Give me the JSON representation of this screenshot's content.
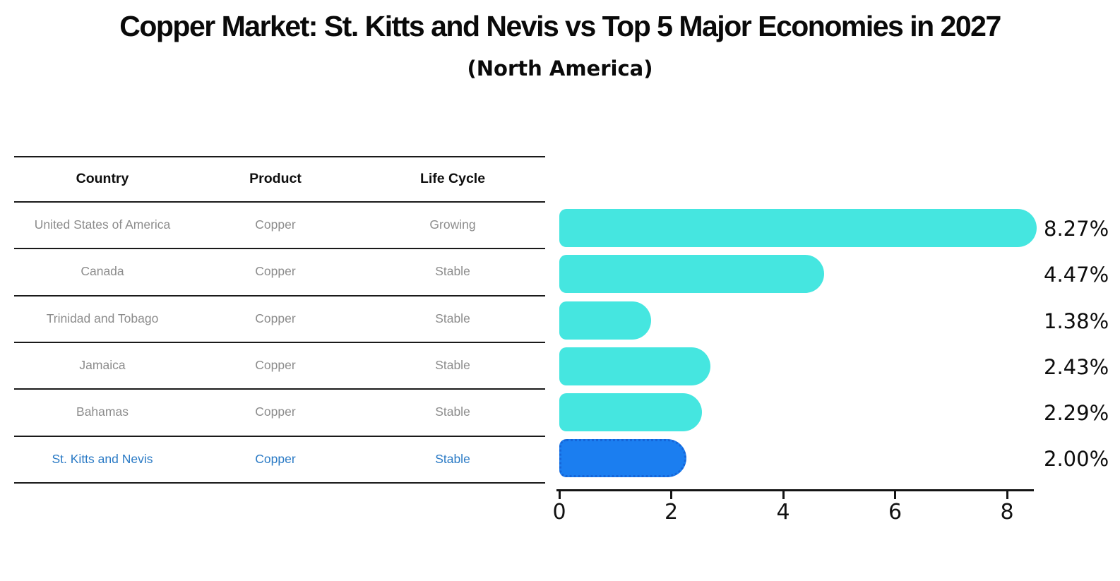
{
  "title": "Copper Market: St. Kitts and Nevis vs Top 5 Major Economies in 2027",
  "subtitle": "(North America)",
  "table": {
    "headers": [
      "Country",
      "Product",
      "Life Cycle"
    ],
    "rows": [
      {
        "country": "United States of America",
        "product": "Copper",
        "life_cycle": "Growing"
      },
      {
        "country": "Canada",
        "product": "Copper",
        "life_cycle": "Stable"
      },
      {
        "country": "Trinidad and Tobago",
        "product": "Copper",
        "life_cycle": "Stable"
      },
      {
        "country": "Jamaica",
        "product": "Copper",
        "life_cycle": "Stable"
      },
      {
        "country": "Bahamas",
        "product": "Copper",
        "life_cycle": "Stable"
      },
      {
        "country": "St. Kitts and Nevis",
        "product": "Copper",
        "life_cycle": "Stable"
      }
    ]
  },
  "chart_data": {
    "type": "bar",
    "orientation": "horizontal",
    "title": "Copper Market: St. Kitts and Nevis vs Top 5 Major Economies in 2027",
    "subtitle": "(North America)",
    "categories": [
      "United States of America",
      "Canada",
      "Trinidad and Tobago",
      "Jamaica",
      "Bahamas",
      "St. Kitts and Nevis"
    ],
    "values": [
      8.27,
      4.47,
      1.38,
      2.43,
      2.29,
      2.0
    ],
    "value_labels": [
      "8.27%",
      "4.47%",
      "1.38%",
      "2.43%",
      "2.29%",
      "2.00%"
    ],
    "xticks": [
      0,
      2,
      4,
      6,
      8
    ],
    "xlim": [
      0,
      8.6
    ],
    "grid": false,
    "legend": false,
    "highlight_index": 5
  },
  "colors": {
    "background": "#FFFFFF",
    "bar": "#45E6E0",
    "highlight": "#1B7EF0",
    "highlight_border": "#1565D8",
    "table_text": "#8C8C8C",
    "highlight_text": "#2A7AC5",
    "axis": "#141414"
  }
}
